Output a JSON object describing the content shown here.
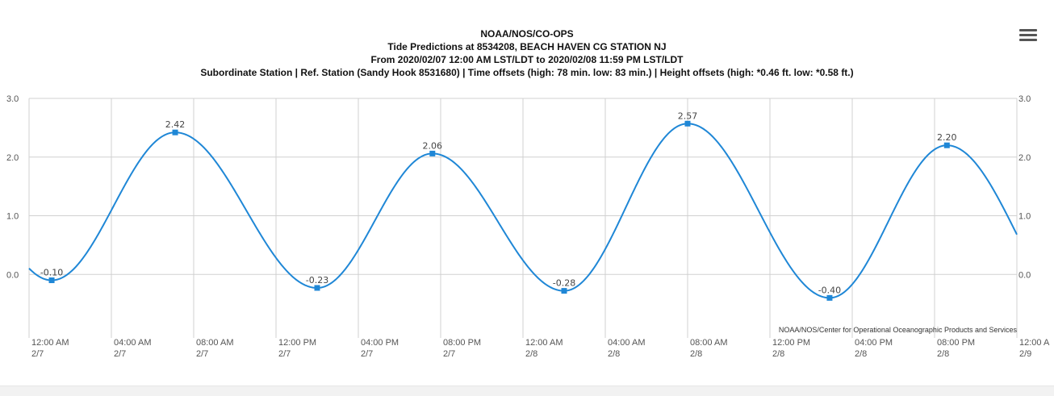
{
  "titles": {
    "line1": "NOAA/NOS/CO-OPS",
    "line2": "Tide Predictions at 8534208, BEACH HAVEN CG STATION NJ",
    "line3": "From 2020/02/07 12:00 AM LST/LDT to 2020/02/08 11:59 PM LST/LDT",
    "line4": "Subordinate Station | Ref. Station (Sandy Hook 8531680) | Time offsets (high: 78 min. low: 83 min.) | Height offsets (high: *0.46 ft. low: *0.58 ft.)"
  },
  "menu": {
    "icon": "hamburger-menu-icon"
  },
  "credit": "NOAA/NOS/Center for Operational Oceanographic Products and Services",
  "chart_data": {
    "type": "line",
    "x_unit": "hours from 2020/02/07 12:00 AM",
    "xlim": [
      0,
      48
    ],
    "ylim": [
      -1.0,
      3.0
    ],
    "y_ticks": [
      0.0,
      1.0,
      2.0,
      3.0
    ],
    "y_tick_labels": [
      "0.0",
      "1.0",
      "2.0",
      "3.0"
    ],
    "x_ticks": [
      0,
      4,
      8,
      12,
      16,
      20,
      24,
      28,
      32,
      36,
      40,
      44,
      48
    ],
    "x_tick_labels": [
      [
        "12:00 AM",
        "2/7"
      ],
      [
        "04:00 AM",
        "2/7"
      ],
      [
        "08:00 AM",
        "2/7"
      ],
      [
        "12:00 PM",
        "2/7"
      ],
      [
        "04:00 PM",
        "2/7"
      ],
      [
        "08:00 PM",
        "2/7"
      ],
      [
        "12:00 AM",
        "2/8"
      ],
      [
        "04:00 AM",
        "2/8"
      ],
      [
        "08:00 AM",
        "2/8"
      ],
      [
        "12:00 PM",
        "2/8"
      ],
      [
        "04:00 PM",
        "2/8"
      ],
      [
        "08:00 PM",
        "2/8"
      ],
      [
        "12:00 A",
        "2/9"
      ]
    ],
    "grid": true,
    "color": "#1f87d6",
    "series": [
      {
        "start": {
          "x": 0.0,
          "y": 0.05
        },
        "extremes": [
          {
            "x": 1.1,
            "y": -0.1,
            "label": "-0.10"
          },
          {
            "x": 7.1,
            "y": 2.42,
            "label": "2.42"
          },
          {
            "x": 14.0,
            "y": -0.23,
            "label": "-0.23"
          },
          {
            "x": 19.6,
            "y": 2.06,
            "label": "2.06"
          },
          {
            "x": 26.0,
            "y": -0.28,
            "label": "-0.28"
          },
          {
            "x": 32.0,
            "y": 2.57,
            "label": "2.57"
          },
          {
            "x": 38.9,
            "y": -0.4,
            "label": "-0.40"
          },
          {
            "x": 44.6,
            "y": 2.2,
            "label": "2.20"
          }
        ],
        "end": {
          "x": 48.0,
          "y": 0.68
        }
      }
    ]
  }
}
